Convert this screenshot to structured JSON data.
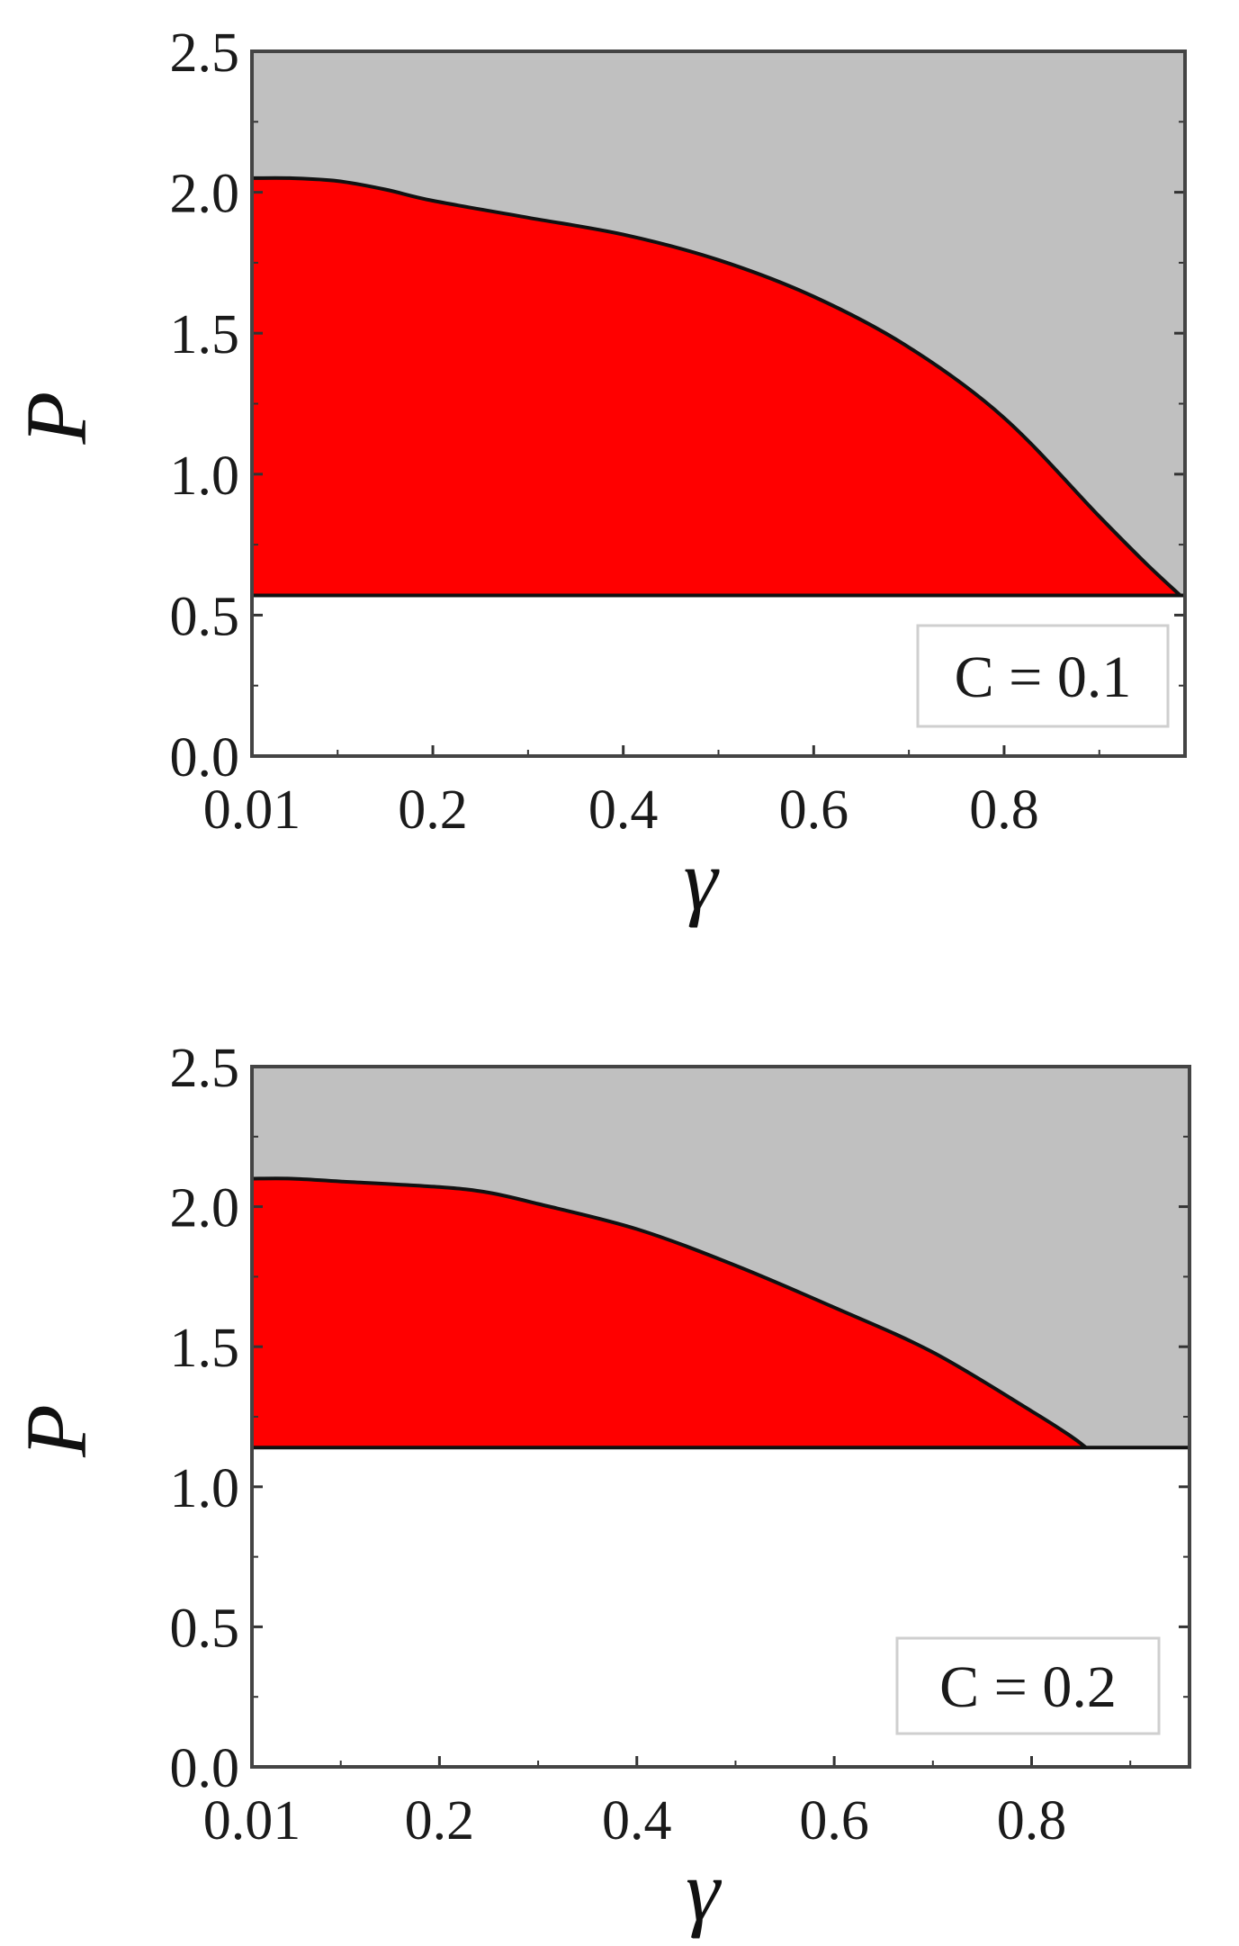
{
  "chart_data": [
    {
      "type": "area",
      "annotation": "C = 0.1",
      "xlabel": "γ",
      "ylabel": "P",
      "xlim": [
        0.01,
        0.99
      ],
      "ylim": [
        0,
        2.5
      ],
      "xticks": [
        "0.01",
        "0.2",
        "0.4",
        "0.6",
        "0.8"
      ],
      "xtick_values": [
        0.01,
        0.2,
        0.4,
        0.6,
        0.8
      ],
      "yticks": [
        "0.0",
        "0.5",
        "1.0",
        "1.5",
        "2.0",
        "2.5"
      ],
      "ytick_values": [
        0.0,
        0.5,
        1.0,
        1.5,
        2.0,
        2.5
      ],
      "lower_bound": 0.57,
      "boundary": {
        "x": [
          0.01,
          0.05,
          0.1,
          0.15,
          0.2,
          0.3,
          0.4,
          0.5,
          0.6,
          0.7,
          0.8,
          0.9,
          0.95,
          0.985
        ],
        "y": [
          2.05,
          2.05,
          2.04,
          2.01,
          1.97,
          1.91,
          1.85,
          1.76,
          1.63,
          1.45,
          1.2,
          0.85,
          0.68,
          0.57
        ]
      },
      "colors": {
        "upper": "#c0c0c0",
        "region": "#ff0000",
        "lower": "#ffffff"
      },
      "grid": false,
      "legend_position": "bottom-right"
    },
    {
      "type": "area",
      "annotation": "C = 0.2",
      "xlabel": "γ",
      "ylabel": "P",
      "xlim": [
        0.01,
        0.96
      ],
      "ylim": [
        0,
        2.5
      ],
      "xticks": [
        "0.01",
        "0.2",
        "0.4",
        "0.6",
        "0.8"
      ],
      "xtick_values": [
        0.01,
        0.2,
        0.4,
        0.6,
        0.8
      ],
      "yticks": [
        "0.0",
        "0.5",
        "1.0",
        "1.5",
        "2.0",
        "2.5"
      ],
      "ytick_values": [
        0.0,
        0.5,
        1.0,
        1.5,
        2.0,
        2.5
      ],
      "lower_bound": 1.14,
      "boundary": {
        "x": [
          0.01,
          0.05,
          0.1,
          0.2,
          0.25,
          0.3,
          0.4,
          0.5,
          0.6,
          0.7,
          0.8,
          0.84,
          0.855
        ],
        "y": [
          2.1,
          2.1,
          2.09,
          2.07,
          2.05,
          2.01,
          1.92,
          1.79,
          1.64,
          1.48,
          1.27,
          1.18,
          1.14
        ]
      },
      "colors": {
        "upper": "#c0c0c0",
        "region": "#ff0000",
        "lower": "#ffffff"
      },
      "grid": false,
      "legend_position": "bottom-right"
    }
  ]
}
